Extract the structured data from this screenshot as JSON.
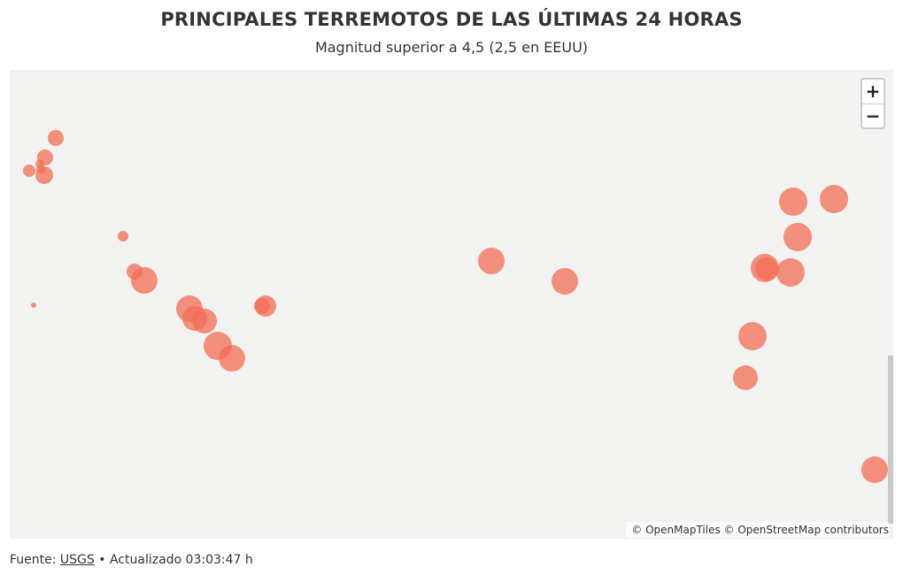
{
  "header": {
    "title": "PRINCIPALES TERREMOTOS DE LAS ÚLTIMAS 24 HORAS",
    "subtitle": "Magnitud superior a 4,5 (2,5 en EEUU)"
  },
  "map": {
    "zoom_in_label": "+",
    "zoom_out_label": "−",
    "attribution": "© OpenMapTiles © OpenStreetMap contributors",
    "marker_color": "#f26d55",
    "background_color": "#f2f2f0",
    "earthquake_count": 33
  },
  "footer": {
    "source_label": "Fuente:",
    "source_link": "USGS",
    "separator": "•",
    "updated_text": "Actualizado 03:03:47 h"
  }
}
